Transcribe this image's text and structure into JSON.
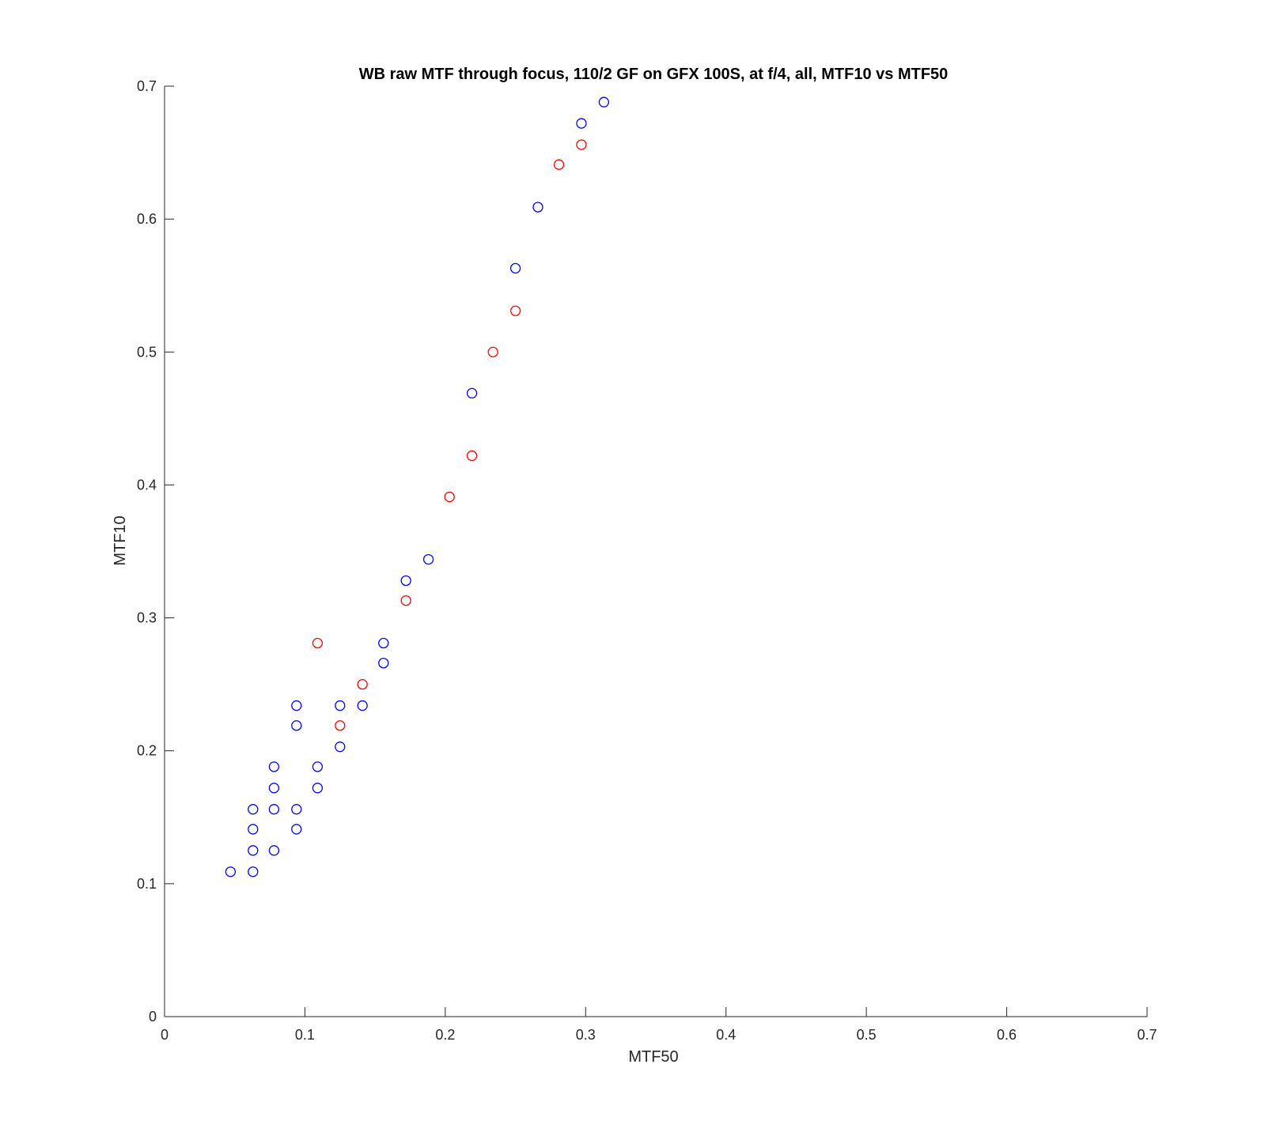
{
  "chart_data": {
    "type": "scatter",
    "title": "WB raw MTF through focus, 110/2 GF on GFX 100S, at f/4, all, MTF10 vs MTF50",
    "xlabel": "MTF50",
    "ylabel": "MTF10",
    "xlim": [
      0,
      0.7
    ],
    "ylim": [
      0,
      0.7
    ],
    "xticks": [
      0,
      0.1,
      0.2,
      0.3,
      0.4,
      0.5,
      0.6,
      0.7
    ],
    "yticks": [
      0,
      0.1,
      0.2,
      0.3,
      0.4,
      0.5,
      0.6,
      0.7
    ],
    "xtick_labels": [
      "0",
      "0.1",
      "0.2",
      "0.3",
      "0.4",
      "0.5",
      "0.6",
      "0.7"
    ],
    "ytick_labels": [
      "0",
      "0.1",
      "0.2",
      "0.3",
      "0.4",
      "0.5",
      "0.6",
      "0.7"
    ],
    "grid": false,
    "legend": "none",
    "marker": "circle-open",
    "series": [
      {
        "color": "#0000ff",
        "points": [
          [
            0.047,
            0.109
          ],
          [
            0.063,
            0.109
          ],
          [
            0.063,
            0.125
          ],
          [
            0.063,
            0.141
          ],
          [
            0.063,
            0.156
          ],
          [
            0.078,
            0.125
          ],
          [
            0.078,
            0.156
          ],
          [
            0.078,
            0.172
          ],
          [
            0.078,
            0.188
          ],
          [
            0.094,
            0.141
          ],
          [
            0.094,
            0.156
          ],
          [
            0.094,
            0.219
          ],
          [
            0.094,
            0.234
          ],
          [
            0.109,
            0.172
          ],
          [
            0.109,
            0.188
          ],
          [
            0.125,
            0.203
          ],
          [
            0.125,
            0.234
          ],
          [
            0.141,
            0.234
          ],
          [
            0.156,
            0.266
          ],
          [
            0.156,
            0.281
          ],
          [
            0.172,
            0.328
          ],
          [
            0.188,
            0.344
          ],
          [
            0.219,
            0.469
          ],
          [
            0.25,
            0.563
          ],
          [
            0.266,
            0.609
          ],
          [
            0.297,
            0.672
          ],
          [
            0.313,
            0.688
          ]
        ]
      },
      {
        "color": "#ff0000",
        "points": [
          [
            0.109,
            0.281
          ],
          [
            0.125,
            0.219
          ],
          [
            0.141,
            0.25
          ],
          [
            0.172,
            0.313
          ],
          [
            0.203,
            0.391
          ],
          [
            0.219,
            0.422
          ],
          [
            0.234,
            0.5
          ],
          [
            0.25,
            0.531
          ],
          [
            0.281,
            0.641
          ],
          [
            0.297,
            0.656
          ]
        ]
      }
    ]
  }
}
